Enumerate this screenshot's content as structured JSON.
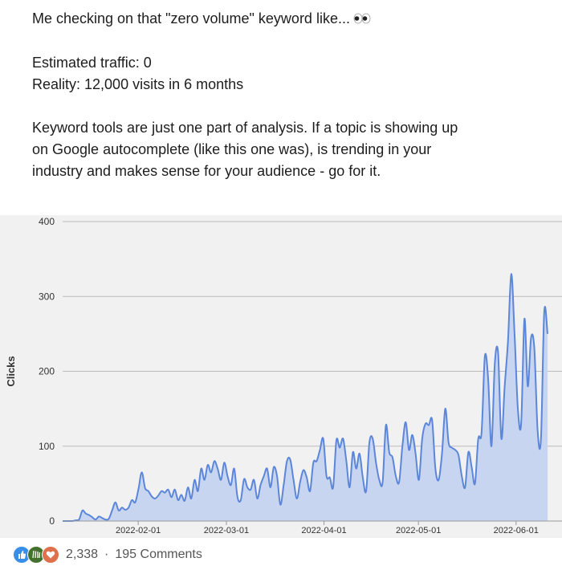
{
  "post": {
    "line1": "Me checking on that \"zero volume\" keyword like...",
    "line2": "Estimated traffic: 0",
    "line3": "Reality: 12,000 visits in 6 months",
    "line4": "Keyword tools are just one part of analysis. If a topic is showing up",
    "line5": "on Google autocomplete (like this one was), is trending in your",
    "line6": "industry and makes sense for your audience - go for it.",
    "emoji_icon": "eyes-emoji-icon"
  },
  "social": {
    "reaction_icons": [
      "like-icon",
      "celebrate-icon",
      "love-icon"
    ],
    "reaction_count": "2,338",
    "separator": "·",
    "comments": "195 Comments"
  },
  "chart_data": {
    "type": "area",
    "ylabel": "Clicks",
    "xlabel": "",
    "ylim": [
      0,
      400
    ],
    "yticks": [
      0,
      100,
      200,
      300,
      400
    ],
    "xticks": [
      "2022-02-01",
      "2022-03-01",
      "2022-04-01",
      "2022-05-01",
      "2022-06-01"
    ],
    "grid": true,
    "fill_color": "#c8d5f1",
    "line_color": "#5b86d9",
    "x_start": "2022-01-08",
    "x_end": "2022-06-11",
    "series": [
      {
        "values": [
          0,
          0,
          0,
          0,
          1,
          2,
          14,
          10,
          8,
          5,
          2,
          6,
          4,
          2,
          3,
          14,
          25,
          14,
          18,
          15,
          18,
          28,
          25,
          43,
          65,
          44,
          40,
          33,
          30,
          34,
          40,
          38,
          42,
          32,
          42,
          28,
          35,
          27,
          45,
          30,
          55,
          40,
          70,
          55,
          75,
          65,
          80,
          70,
          55,
          78,
          60,
          48,
          70,
          32,
          28,
          56,
          45,
          42,
          55,
          30,
          48,
          60,
          70,
          45,
          72,
          60,
          22,
          48,
          80,
          82,
          55,
          30,
          52,
          68,
          58,
          40,
          78,
          80,
          95,
          110,
          60,
          58,
          45,
          108,
          98,
          110,
          80,
          45,
          92,
          70,
          90,
          58,
          40,
          105,
          110,
          78,
          55,
          52,
          128,
          92,
          85,
          60,
          52,
          100,
          132,
          95,
          115,
          90,
          55,
          110,
          130,
          128,
          135,
          70,
          55,
          90,
          150,
          105,
          98,
          95,
          88,
          60,
          45,
          92,
          72,
          50,
          110,
          118,
          220,
          190,
          100,
          210,
          225,
          110,
          180,
          240,
          330,
          250,
          150,
          130,
          270,
          180,
          245,
          230,
          120,
          110,
          280,
          250
        ]
      }
    ]
  }
}
